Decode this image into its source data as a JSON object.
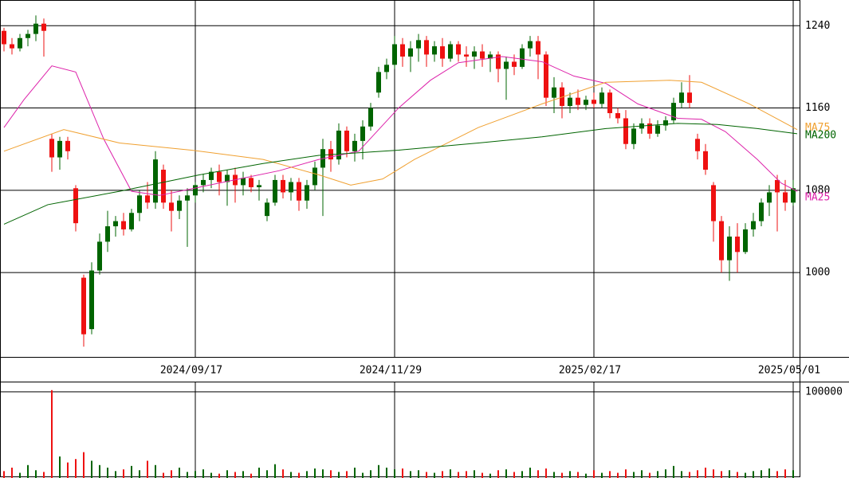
{
  "chart_data": [
    {
      "type": "candlestick",
      "up_color": "#006400",
      "down_color": "#ee1111",
      "categories": [
        null,
        null,
        null,
        null,
        null,
        null,
        null,
        null,
        null,
        null,
        null,
        null,
        null,
        null,
        null,
        null,
        null,
        null,
        null,
        null,
        null,
        null,
        null,
        null,
        "2024/09/17",
        null,
        null,
        null,
        null,
        null,
        null,
        null,
        null,
        null,
        null,
        null,
        null,
        null,
        null,
        null,
        null,
        null,
        null,
        null,
        null,
        null,
        null,
        null,
        null,
        "2024/11/29",
        null,
        null,
        null,
        null,
        null,
        null,
        null,
        null,
        null,
        null,
        null,
        null,
        null,
        null,
        null,
        null,
        null,
        null,
        null,
        null,
        null,
        null,
        null,
        null,
        "2025/02/17",
        null,
        null,
        null,
        null,
        null,
        null,
        null,
        null,
        null,
        null,
        null,
        null,
        null,
        null,
        null,
        null,
        null,
        null,
        null,
        null,
        null,
        null,
        null,
        null,
        "2025/05/01"
      ],
      "open": [
        1235,
        1222,
        1218,
        1228,
        1232,
        1242,
        1130,
        1112,
        1128,
        1082,
        995,
        945,
        1002,
        1030,
        1045,
        1050,
        1042,
        1058,
        1075,
        1068,
        1100,
        1068,
        1060,
        1070,
        1075,
        1085,
        1090,
        1098,
        1088,
        1095,
        1085,
        1092,
        1083,
        1055,
        1068,
        1090,
        1078,
        1088,
        1070,
        1085,
        1102,
        1120,
        1110,
        1138,
        1118,
        1128,
        1142,
        1175,
        1195,
        1202,
        1222,
        1210,
        1218,
        1226,
        1212,
        1220,
        1208,
        1222,
        1212,
        1210,
        1215,
        1208,
        1212,
        1198,
        1205,
        1200,
        1218,
        1225,
        1212,
        1170,
        1180,
        1162,
        1170,
        1163,
        1168,
        1164,
        1175,
        1155,
        1150,
        1125,
        1140,
        1145,
        1135,
        1143,
        1148,
        1165,
        1175,
        1130,
        1118,
        1085,
        1050,
        1012,
        1035,
        1020,
        1042,
        1050,
        1068,
        1090,
        1078,
        1068
      ],
      "high": [
        1238,
        1228,
        1232,
        1236,
        1250,
        1247,
        1135,
        1132,
        1132,
        1085,
        998,
        1010,
        1038,
        1060,
        1055,
        1058,
        1062,
        1080,
        1088,
        1118,
        1105,
        1080,
        1075,
        1082,
        1088,
        1096,
        1102,
        1105,
        1100,
        1102,
        1098,
        1095,
        1090,
        1072,
        1095,
        1095,
        1092,
        1092,
        1090,
        1108,
        1130,
        1128,
        1145,
        1142,
        1135,
        1148,
        1165,
        1200,
        1208,
        1230,
        1228,
        1225,
        1232,
        1230,
        1225,
        1228,
        1225,
        1225,
        1220,
        1220,
        1222,
        1215,
        1215,
        1210,
        1212,
        1222,
        1230,
        1230,
        1215,
        1190,
        1185,
        1175,
        1178,
        1172,
        1175,
        1180,
        1178,
        1160,
        1158,
        1145,
        1150,
        1150,
        1148,
        1152,
        1170,
        1185,
        1192,
        1135,
        1125,
        1088,
        1055,
        1045,
        1048,
        1048,
        1058,
        1072,
        1085,
        1095,
        1090,
        1090
      ],
      "low": [
        1215,
        1212,
        1215,
        1220,
        1225,
        1210,
        1098,
        1100,
        1110,
        1040,
        928,
        940,
        998,
        1020,
        1035,
        1036,
        1040,
        1050,
        1062,
        1062,
        1062,
        1040,
        1052,
        1025,
        1068,
        1078,
        1082,
        1075,
        1065,
        1068,
        1075,
        1078,
        1070,
        1050,
        1065,
        1072,
        1070,
        1060,
        1062,
        1080,
        1055,
        1098,
        1105,
        1112,
        1108,
        1110,
        1138,
        1170,
        1188,
        1198,
        1200,
        1195,
        1205,
        1200,
        1205,
        1200,
        1205,
        1205,
        1200,
        1198,
        1200,
        1195,
        1185,
        1168,
        1192,
        1198,
        1210,
        1188,
        1162,
        1155,
        1150,
        1155,
        1158,
        1158,
        1160,
        1160,
        1150,
        1145,
        1120,
        1120,
        1135,
        1130,
        1132,
        1138,
        1145,
        1160,
        1160,
        1110,
        1095,
        1030,
        1000,
        992,
        1000,
        1018,
        1035,
        1045,
        1055,
        1040,
        1060,
        1065
      ],
      "close": [
        1222,
        1218,
        1228,
        1232,
        1242,
        1235,
        1112,
        1128,
        1118,
        1048,
        940,
        1002,
        1030,
        1045,
        1050,
        1042,
        1058,
        1075,
        1068,
        1110,
        1068,
        1060,
        1070,
        1075,
        1085,
        1090,
        1098,
        1088,
        1095,
        1085,
        1092,
        1083,
        1085,
        1068,
        1090,
        1078,
        1088,
        1070,
        1085,
        1102,
        1120,
        1110,
        1138,
        1118,
        1128,
        1142,
        1160,
        1195,
        1202,
        1222,
        1210,
        1218,
        1226,
        1212,
        1220,
        1208,
        1222,
        1212,
        1210,
        1215,
        1208,
        1212,
        1198,
        1205,
        1200,
        1218,
        1225,
        1212,
        1170,
        1180,
        1162,
        1170,
        1163,
        1168,
        1164,
        1175,
        1155,
        1150,
        1125,
        1140,
        1145,
        1135,
        1143,
        1148,
        1165,
        1175,
        1165,
        1118,
        1100,
        1050,
        1012,
        1035,
        1020,
        1042,
        1050,
        1068,
        1078,
        1078,
        1068,
        1082
      ],
      "ylim": [
        918,
        1265
      ],
      "yticks": [
        1000,
        1080,
        1160,
        1240
      ],
      "series": [
        {
          "name": "MA25",
          "color": "#dd22aa",
          "x": [
            0,
            2.5,
            6,
            9,
            12.5,
            16,
            19.5,
            24.5,
            29.5,
            34.5,
            39.5,
            44.5,
            49.5,
            53.5,
            57,
            62.5,
            67.5,
            71.5,
            75.5,
            79.5,
            84.5,
            87.5,
            90.5,
            94.5,
            97.5,
            99.5
          ],
          "values": [
            1141,
            1168,
            1201,
            1195,
            1130,
            1079,
            1075,
            1083,
            1091,
            1099,
            1110,
            1118,
            1160,
            1187,
            1204,
            1210,
            1205,
            1191,
            1184,
            1164,
            1150,
            1149,
            1137,
            1110,
            1087,
            1079
          ]
        },
        {
          "name": "MA75",
          "color": "#f0a030",
          "x": [
            0,
            7.5,
            14.5,
            23.5,
            32.5,
            39.5,
            43.5,
            47.5,
            51.5,
            59.5,
            67.5,
            75.5,
            83.5,
            87.5,
            93.5,
            99.5
          ],
          "values": [
            1118,
            1139,
            1126,
            1119,
            1110,
            1095,
            1085,
            1091,
            1110,
            1141,
            1164,
            1185,
            1187,
            1185,
            1164,
            1139
          ]
        },
        {
          "name": "MA200",
          "color": "#006400",
          "x": [
            0,
            5.5,
            14.5,
            24.5,
            32.5,
            39.5,
            49.5,
            59.5,
            67.5,
            75.5,
            84.5,
            89.5,
            94.5,
            99.5
          ],
          "values": [
            1047,
            1066,
            1079,
            1095,
            1106,
            1114,
            1119,
            1126,
            1132,
            1140,
            1145,
            1144,
            1140,
            1135
          ]
        }
      ]
    },
    {
      "type": "bar",
      "ylim": [
        0,
        111000
      ],
      "yticks": [
        100000
      ],
      "values": [
        8000,
        12000,
        6000,
        15000,
        9000,
        7000,
        102000,
        25000,
        18000,
        22000,
        30000,
        20000,
        15000,
        12000,
        8000,
        10000,
        14000,
        9000,
        20000,
        15000,
        6000,
        9000,
        12000,
        7000,
        8000,
        10000,
        6000,
        5000,
        9000,
        7000,
        8000,
        5000,
        12000,
        9000,
        16000,
        10000,
        7000,
        6000,
        8000,
        11000,
        10000,
        9000,
        7000,
        8000,
        12000,
        6000,
        9000,
        15000,
        12000,
        10000,
        11000,
        8000,
        9000,
        7000,
        6000,
        8000,
        10000,
        7000,
        8000,
        9000,
        6000,
        5000,
        9000,
        10000,
        7000,
        8000,
        12000,
        9000,
        11000,
        7000,
        6000,
        8000,
        7000,
        5000,
        9000,
        6000,
        8000,
        6000,
        10000,
        7000,
        9000,
        6000,
        8000,
        10000,
        14000,
        8000,
        7000,
        9000,
        12000,
        10000,
        8000,
        9000,
        7000,
        6000,
        8000,
        9000,
        11000,
        8000,
        10000,
        9000
      ]
    }
  ]
}
